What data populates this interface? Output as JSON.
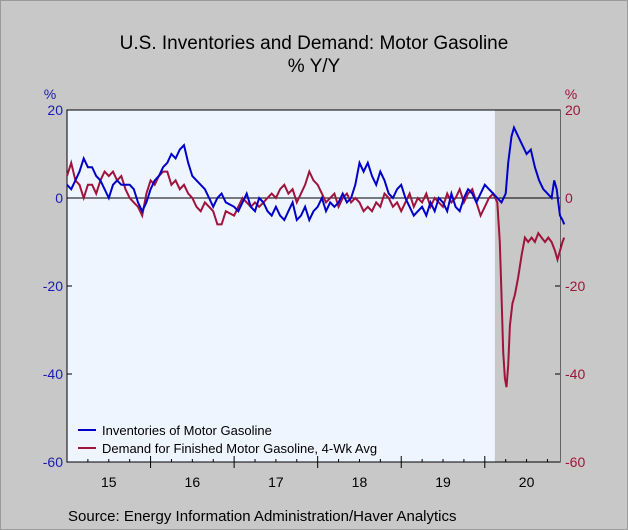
{
  "chart_data": {
    "type": "line",
    "title": "U.S. Inventories and Demand: Motor Gasoline",
    "subtitle": "% Y/Y",
    "source": "Source:  Energy Information Administration/Haver Analytics",
    "left_axis": {
      "unit": "%",
      "ylim": [
        -60,
        20
      ],
      "ticks": [
        "20",
        "0",
        "-20",
        "-40",
        "-60"
      ],
      "color": "#1a1ab4"
    },
    "right_axis": {
      "unit": "%",
      "ylim": [
        -60,
        20
      ],
      "ticks": [
        "20",
        "0",
        "-20",
        "-40",
        "-60"
      ],
      "color": "#a0143c"
    },
    "x_axis": {
      "xlim": [
        2015.0,
        2020.9
      ],
      "ticks": [
        "15",
        "16",
        "17",
        "18",
        "19",
        "20"
      ]
    },
    "recession_shade": [
      2020.12,
      2020.9
    ],
    "zero_line": true,
    "legend_placement": "bottom-left",
    "series": [
      {
        "name": "Inventories of Motor Gasoline",
        "color": "#0000c8",
        "points": [
          [
            2015.0,
            3
          ],
          [
            2015.05,
            2
          ],
          [
            2015.1,
            4
          ],
          [
            2015.15,
            6
          ],
          [
            2015.2,
            9
          ],
          [
            2015.25,
            7
          ],
          [
            2015.3,
            7
          ],
          [
            2015.35,
            5
          ],
          [
            2015.4,
            4
          ],
          [
            2015.45,
            2
          ],
          [
            2015.5,
            0
          ],
          [
            2015.55,
            3
          ],
          [
            2015.6,
            4
          ],
          [
            2015.65,
            3
          ],
          [
            2015.7,
            3
          ],
          [
            2015.75,
            3
          ],
          [
            2015.8,
            2
          ],
          [
            2015.85,
            -1
          ],
          [
            2015.9,
            -3
          ],
          [
            2015.95,
            -1
          ],
          [
            2016.0,
            2
          ],
          [
            2016.05,
            4
          ],
          [
            2016.1,
            5
          ],
          [
            2016.15,
            7
          ],
          [
            2016.2,
            8
          ],
          [
            2016.25,
            10
          ],
          [
            2016.3,
            9
          ],
          [
            2016.35,
            11
          ],
          [
            2016.4,
            12
          ],
          [
            2016.45,
            8
          ],
          [
            2016.5,
            5
          ],
          [
            2016.55,
            4
          ],
          [
            2016.6,
            3
          ],
          [
            2016.65,
            2
          ],
          [
            2016.7,
            0
          ],
          [
            2016.75,
            -2
          ],
          [
            2016.8,
            0
          ],
          [
            2016.85,
            1
          ],
          [
            2016.9,
            -1
          ],
          [
            2017.0,
            -2
          ],
          [
            2017.05,
            -3
          ],
          [
            2017.1,
            -1
          ],
          [
            2017.15,
            1
          ],
          [
            2017.2,
            -2
          ],
          [
            2017.25,
            -3
          ],
          [
            2017.3,
            0
          ],
          [
            2017.35,
            -1
          ],
          [
            2017.4,
            -3
          ],
          [
            2017.45,
            -4
          ],
          [
            2017.5,
            -2
          ],
          [
            2017.55,
            -4
          ],
          [
            2017.6,
            -5
          ],
          [
            2017.65,
            -3
          ],
          [
            2017.7,
            -1
          ],
          [
            2017.75,
            -5
          ],
          [
            2017.8,
            -4
          ],
          [
            2017.85,
            -2
          ],
          [
            2017.9,
            -5
          ],
          [
            2017.95,
            -3
          ],
          [
            2018.0,
            -2
          ],
          [
            2018.05,
            0
          ],
          [
            2018.1,
            -3
          ],
          [
            2018.15,
            -1
          ],
          [
            2018.2,
            -2
          ],
          [
            2018.25,
            -1
          ],
          [
            2018.3,
            1
          ],
          [
            2018.35,
            -1
          ],
          [
            2018.4,
            0
          ],
          [
            2018.45,
            3
          ],
          [
            2018.5,
            8
          ],
          [
            2018.55,
            6
          ],
          [
            2018.6,
            8
          ],
          [
            2018.65,
            5
          ],
          [
            2018.7,
            3
          ],
          [
            2018.75,
            6
          ],
          [
            2018.8,
            4
          ],
          [
            2018.85,
            1
          ],
          [
            2018.9,
            0
          ],
          [
            2018.95,
            2
          ],
          [
            2019.0,
            3
          ],
          [
            2019.05,
            0
          ],
          [
            2019.1,
            -2
          ],
          [
            2019.15,
            -4
          ],
          [
            2019.2,
            -3
          ],
          [
            2019.25,
            -2
          ],
          [
            2019.3,
            -4
          ],
          [
            2019.35,
            -1
          ],
          [
            2019.4,
            -3
          ],
          [
            2019.45,
            0
          ],
          [
            2019.5,
            -1
          ],
          [
            2019.55,
            -3
          ],
          [
            2019.6,
            1
          ],
          [
            2019.65,
            -2
          ],
          [
            2019.7,
            -3
          ],
          [
            2019.75,
            0
          ],
          [
            2019.8,
            2
          ],
          [
            2019.85,
            1
          ],
          [
            2019.9,
            -1
          ],
          [
            2019.95,
            1
          ],
          [
            2020.0,
            3
          ],
          [
            2020.05,
            2
          ],
          [
            2020.1,
            1
          ],
          [
            2020.15,
            0
          ],
          [
            2020.2,
            -1
          ],
          [
            2020.25,
            1
          ],
          [
            2020.28,
            8
          ],
          [
            2020.32,
            14
          ],
          [
            2020.35,
            16
          ],
          [
            2020.4,
            14
          ],
          [
            2020.45,
            12
          ],
          [
            2020.5,
            10
          ],
          [
            2020.55,
            11
          ],
          [
            2020.6,
            7
          ],
          [
            2020.65,
            4
          ],
          [
            2020.7,
            2
          ],
          [
            2020.75,
            1
          ],
          [
            2020.8,
            0
          ],
          [
            2020.83,
            4
          ],
          [
            2020.86,
            2
          ],
          [
            2020.88,
            -1
          ],
          [
            2020.9,
            -4
          ],
          [
            2020.93,
            -5
          ],
          [
            2020.95,
            -6
          ]
        ]
      },
      {
        "name": "Demand for Finished Motor Gasoline, 4-Wk Avg",
        "color": "#a0143c",
        "points": [
          [
            2015.0,
            5
          ],
          [
            2015.05,
            8
          ],
          [
            2015.1,
            4
          ],
          [
            2015.15,
            3
          ],
          [
            2015.2,
            0
          ],
          [
            2015.25,
            3
          ],
          [
            2015.3,
            3
          ],
          [
            2015.35,
            1
          ],
          [
            2015.4,
            4
          ],
          [
            2015.45,
            6
          ],
          [
            2015.5,
            5
          ],
          [
            2015.55,
            6
          ],
          [
            2015.6,
            4
          ],
          [
            2015.65,
            5
          ],
          [
            2015.7,
            2
          ],
          [
            2015.75,
            0
          ],
          [
            2015.8,
            -1
          ],
          [
            2015.85,
            -2
          ],
          [
            2015.9,
            -4
          ],
          [
            2015.95,
            1
          ],
          [
            2016.0,
            4
          ],
          [
            2016.05,
            3
          ],
          [
            2016.1,
            5
          ],
          [
            2016.15,
            6
          ],
          [
            2016.2,
            6
          ],
          [
            2016.25,
            3
          ],
          [
            2016.3,
            4
          ],
          [
            2016.35,
            2
          ],
          [
            2016.4,
            3
          ],
          [
            2016.45,
            1
          ],
          [
            2016.5,
            0
          ],
          [
            2016.55,
            -2
          ],
          [
            2016.6,
            -3
          ],
          [
            2016.65,
            -1
          ],
          [
            2016.7,
            -2
          ],
          [
            2016.75,
            -3
          ],
          [
            2016.8,
            -6
          ],
          [
            2016.85,
            -6
          ],
          [
            2016.9,
            -3
          ],
          [
            2017.0,
            -4
          ],
          [
            2017.05,
            -2
          ],
          [
            2017.1,
            0
          ],
          [
            2017.15,
            -1
          ],
          [
            2017.2,
            -2
          ],
          [
            2017.25,
            -1
          ],
          [
            2017.3,
            -2
          ],
          [
            2017.35,
            -1
          ],
          [
            2017.4,
            0
          ],
          [
            2017.45,
            1
          ],
          [
            2017.5,
            0
          ],
          [
            2017.55,
            2
          ],
          [
            2017.6,
            3
          ],
          [
            2017.65,
            1
          ],
          [
            2017.7,
            2
          ],
          [
            2017.75,
            -1
          ],
          [
            2017.8,
            1
          ],
          [
            2017.85,
            3
          ],
          [
            2017.9,
            6
          ],
          [
            2017.95,
            4
          ],
          [
            2018.0,
            3
          ],
          [
            2018.05,
            1
          ],
          [
            2018.1,
            -1
          ],
          [
            2018.15,
            0
          ],
          [
            2018.2,
            1
          ],
          [
            2018.25,
            -2
          ],
          [
            2018.3,
            0
          ],
          [
            2018.35,
            1
          ],
          [
            2018.4,
            -1
          ],
          [
            2018.45,
            0
          ],
          [
            2018.5,
            -1
          ],
          [
            2018.55,
            -3
          ],
          [
            2018.6,
            -2
          ],
          [
            2018.65,
            -3
          ],
          [
            2018.7,
            -1
          ],
          [
            2018.75,
            -2
          ],
          [
            2018.8,
            1
          ],
          [
            2018.85,
            0
          ],
          [
            2018.9,
            -2
          ],
          [
            2018.95,
            -1
          ],
          [
            2019.0,
            -3
          ],
          [
            2019.05,
            -1
          ],
          [
            2019.1,
            1
          ],
          [
            2019.15,
            -2
          ],
          [
            2019.2,
            0
          ],
          [
            2019.25,
            -1
          ],
          [
            2019.3,
            1
          ],
          [
            2019.35,
            -2
          ],
          [
            2019.4,
            0
          ],
          [
            2019.45,
            -1
          ],
          [
            2019.5,
            -2
          ],
          [
            2019.55,
            1
          ],
          [
            2019.6,
            -1
          ],
          [
            2019.65,
            0
          ],
          [
            2019.7,
            2
          ],
          [
            2019.75,
            -1
          ],
          [
            2019.8,
            1
          ],
          [
            2019.85,
            2
          ],
          [
            2019.9,
            -1
          ],
          [
            2019.95,
            -4
          ],
          [
            2020.0,
            -2
          ],
          [
            2020.05,
            0
          ],
          [
            2020.1,
            1
          ],
          [
            2020.15,
            -1
          ],
          [
            2020.18,
            -10
          ],
          [
            2020.2,
            -22
          ],
          [
            2020.22,
            -35
          ],
          [
            2020.24,
            -41
          ],
          [
            2020.26,
            -43
          ],
          [
            2020.28,
            -38
          ],
          [
            2020.3,
            -29
          ],
          [
            2020.33,
            -24
          ],
          [
            2020.36,
            -22
          ],
          [
            2020.4,
            -18
          ],
          [
            2020.44,
            -13
          ],
          [
            2020.48,
            -9
          ],
          [
            2020.52,
            -10
          ],
          [
            2020.56,
            -9
          ],
          [
            2020.6,
            -10
          ],
          [
            2020.64,
            -8
          ],
          [
            2020.68,
            -9
          ],
          [
            2020.72,
            -10
          ],
          [
            2020.76,
            -9
          ],
          [
            2020.8,
            -10
          ],
          [
            2020.84,
            -12
          ],
          [
            2020.87,
            -14
          ],
          [
            2020.9,
            -12
          ],
          [
            2020.93,
            -10
          ],
          [
            2020.95,
            -9
          ]
        ]
      }
    ]
  }
}
